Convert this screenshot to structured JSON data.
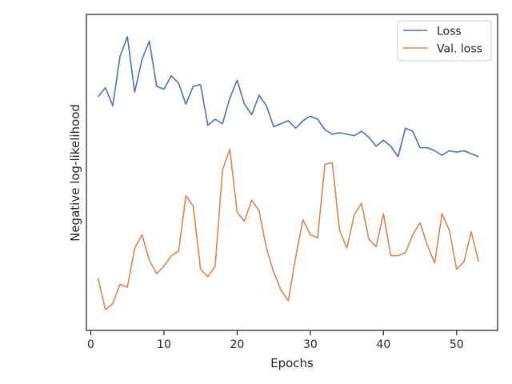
{
  "chart_data": {
    "type": "line",
    "title": "",
    "xlabel": "Epochs",
    "ylabel": "Negative log-likelihood",
    "xlim": [
      -0.6,
      55.6
    ],
    "ylim": [
      0,
      100
    ],
    "xticks": [
      0,
      10,
      20,
      30,
      40,
      50
    ],
    "yticks_shown": false,
    "grid": false,
    "legend": {
      "placement": "top-right"
    },
    "x": [
      1,
      2,
      3,
      4,
      5,
      6,
      7,
      8,
      9,
      10,
      11,
      12,
      13,
      14,
      15,
      16,
      17,
      18,
      19,
      20,
      21,
      22,
      23,
      24,
      25,
      26,
      27,
      28,
      29,
      30,
      31,
      32,
      33,
      34,
      35,
      36,
      37,
      38,
      39,
      40,
      41,
      42,
      43,
      44,
      45,
      46,
      47,
      48,
      49,
      50,
      51,
      52,
      53
    ],
    "series": [
      {
        "name": "Loss",
        "color": "#4c72b0",
        "values": [
          75.5,
          78.5,
          72.5,
          89,
          95.5,
          77,
          88,
          94,
          79,
          78,
          82.5,
          80,
          73,
          79,
          79.5,
          66,
          68,
          66.5,
          75,
          81,
          73,
          69.5,
          76,
          72.5,
          65.5,
          66.5,
          67.5,
          65,
          67.5,
          69,
          68,
          64.5,
          63,
          63.5,
          63,
          62.5,
          64,
          62,
          59,
          61,
          59,
          55.5,
          65,
          64,
          58.5,
          58.5,
          57.5,
          56,
          57.5,
          57,
          57.5,
          56.5,
          55.5
        ]
      },
      {
        "name": "Val. loss",
        "color": "#dd8452",
        "values": [
          15,
          4.5,
          6.5,
          13,
          12,
          25,
          29.5,
          21,
          16.5,
          19,
          22.5,
          24,
          42.5,
          39,
          18,
          15.5,
          19,
          51,
          58,
          37,
          34,
          41,
          37.5,
          25,
          17,
          11,
          7.5,
          22,
          34.5,
          29.5,
          28.5,
          53,
          53.5,
          31,
          25,
          36,
          40,
          28,
          25.5,
          36.5,
          22.5,
          22.5,
          23.5,
          29.5,
          33.5,
          26,
          20,
          36.5,
          31,
          18,
          20.5,
          30.5,
          20.5
        ]
      }
    ]
  }
}
